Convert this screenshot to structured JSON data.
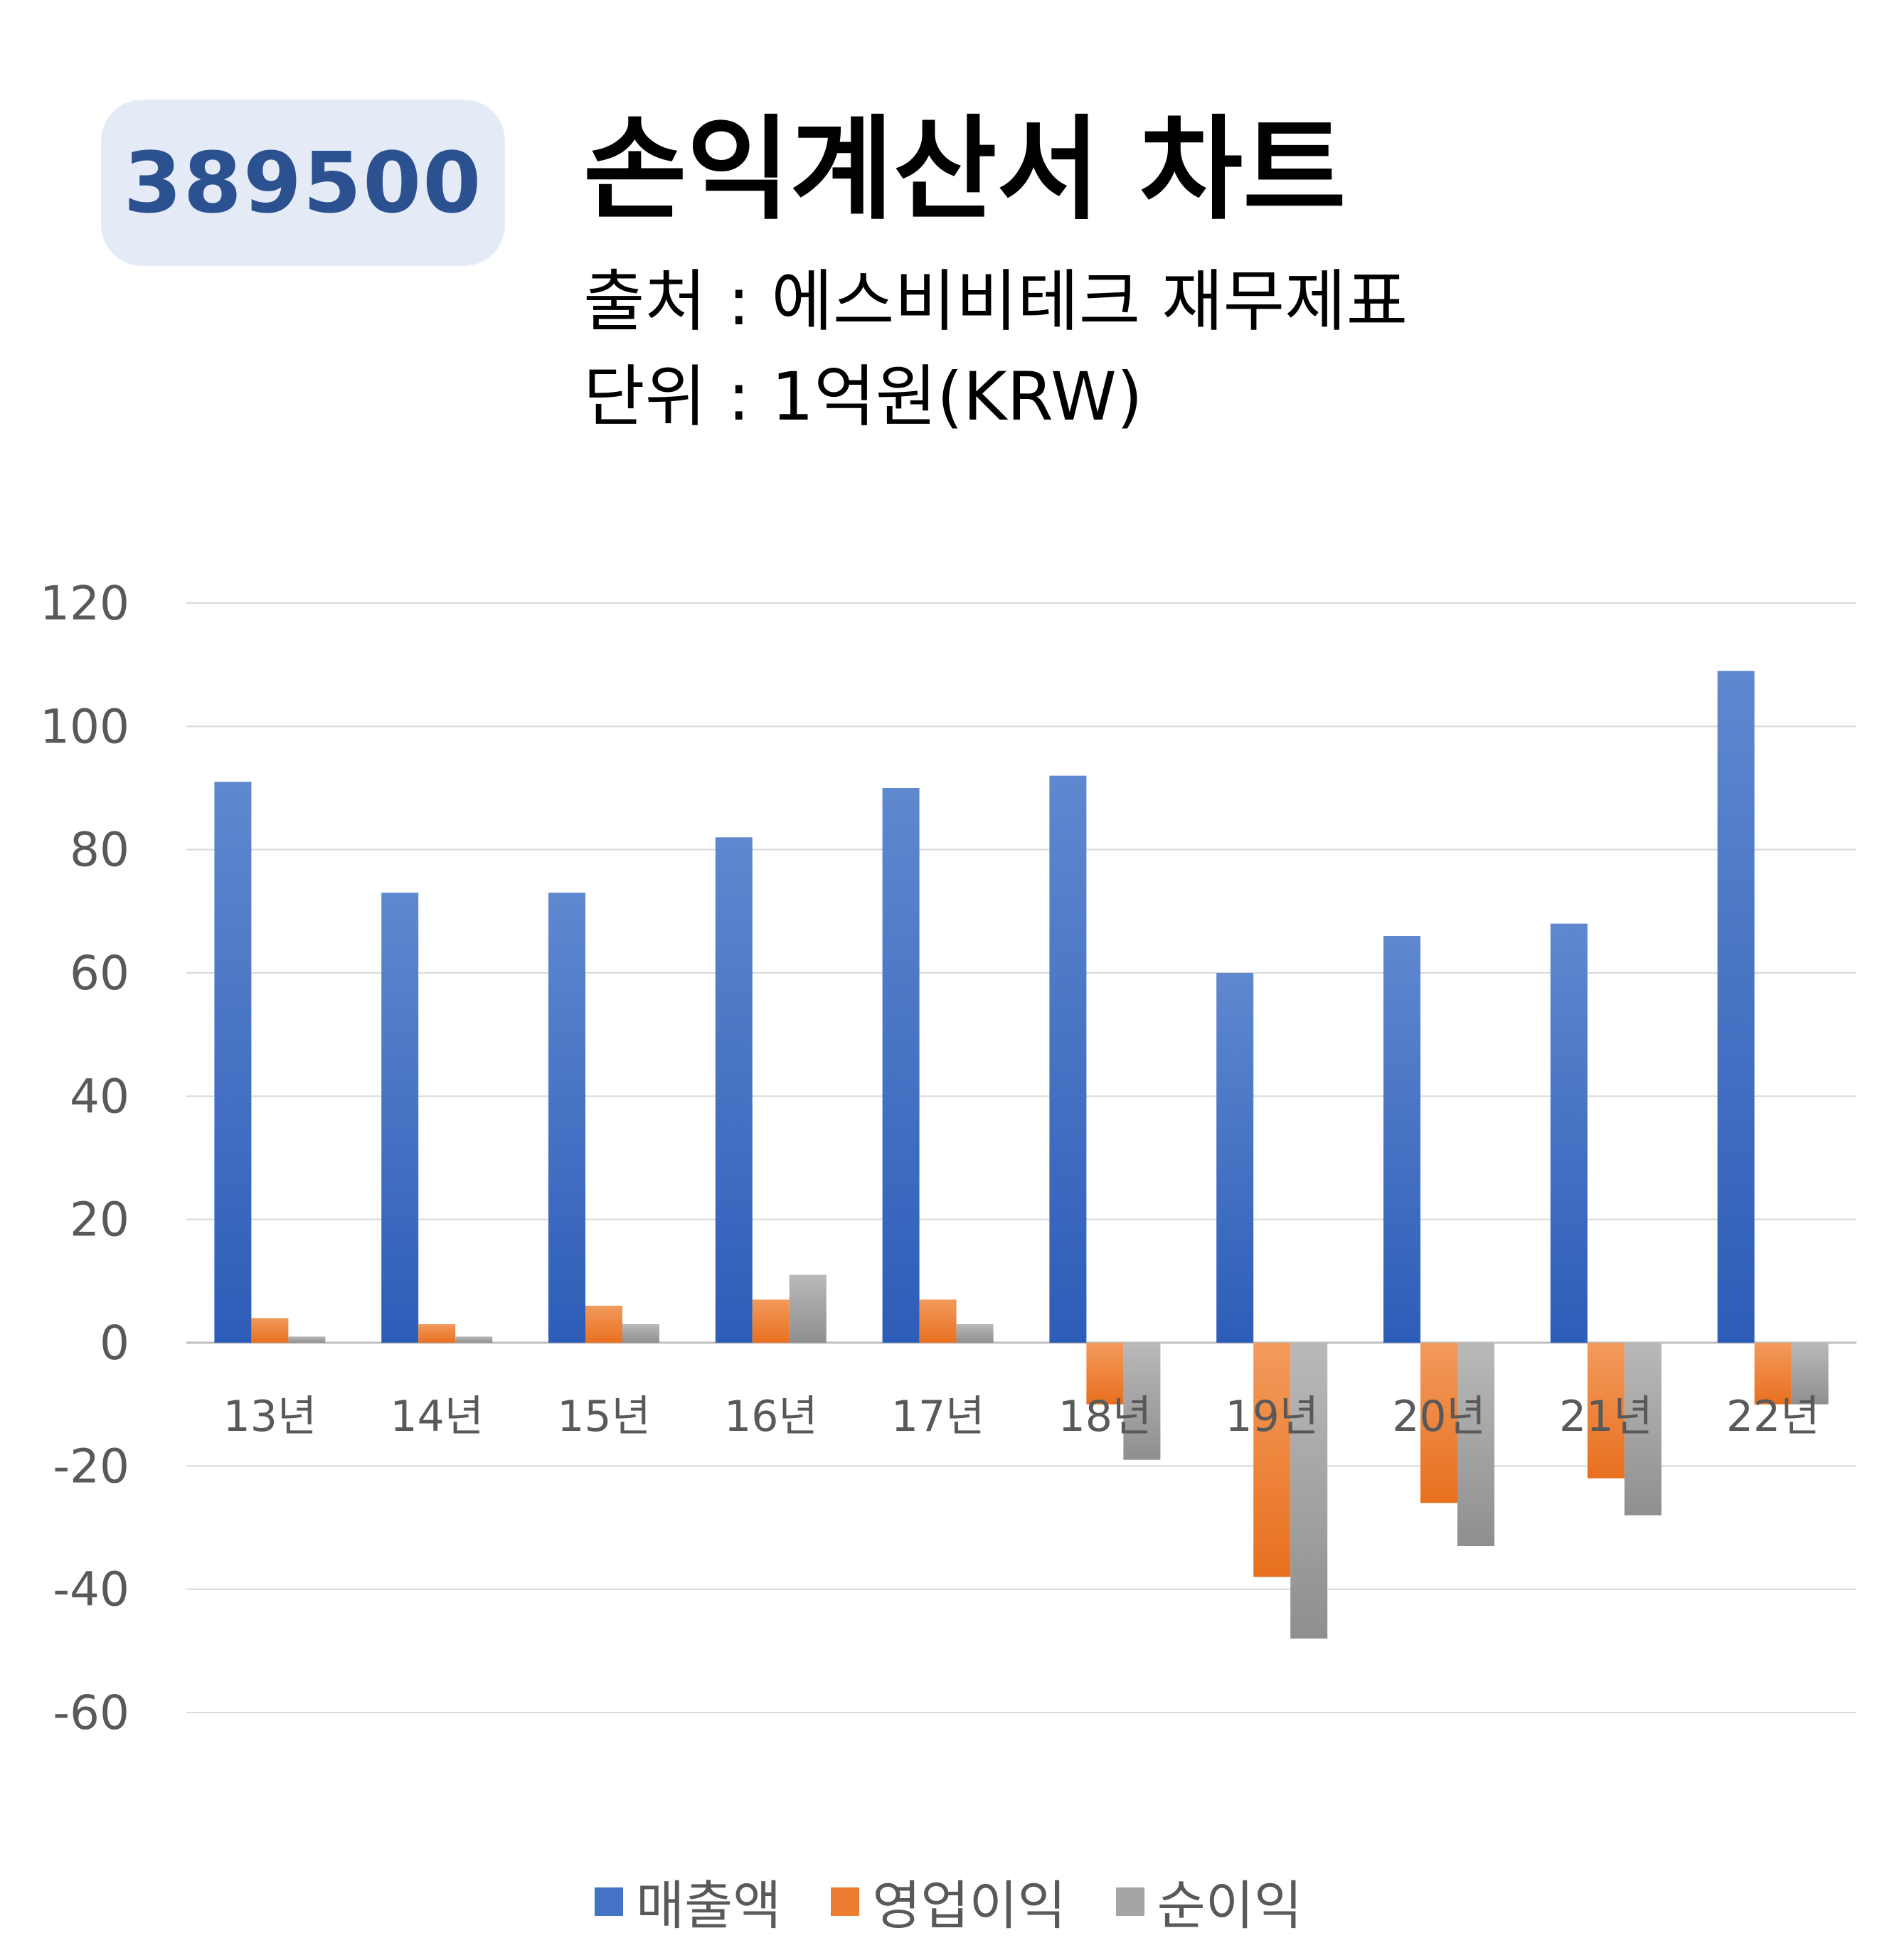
{
  "header": {
    "badge": "389500",
    "title": "손익계산서 차트",
    "source": "출처 : 에스비비테크 재무제표",
    "unit": "단위 : 1억원(KRW)"
  },
  "chart_data": {
    "type": "bar",
    "categories": [
      "13년",
      "14년",
      "15년",
      "16년",
      "17년",
      "18년",
      "19년",
      "20년",
      "21년",
      "22년"
    ],
    "series": [
      {
        "name": "매출액",
        "color": "#4472c4",
        "values": [
          91,
          73,
          73,
          82,
          90,
          92,
          60,
          66,
          68,
          109
        ]
      },
      {
        "name": "영업이익",
        "color": "#ed7d31",
        "values": [
          4,
          3,
          6,
          7,
          7,
          -10,
          -38,
          -26,
          -22,
          -10
        ]
      },
      {
        "name": "순이익",
        "color": "#a5a5a5",
        "values": [
          1,
          1,
          3,
          11,
          3,
          -19,
          -48,
          -33,
          -28,
          -10
        ]
      }
    ],
    "ylim": [
      -60,
      120
    ],
    "yticks": [
      120,
      100,
      80,
      60,
      40,
      20,
      0,
      -20,
      -40,
      -60
    ],
    "grid": true,
    "legend": "bottom"
  }
}
